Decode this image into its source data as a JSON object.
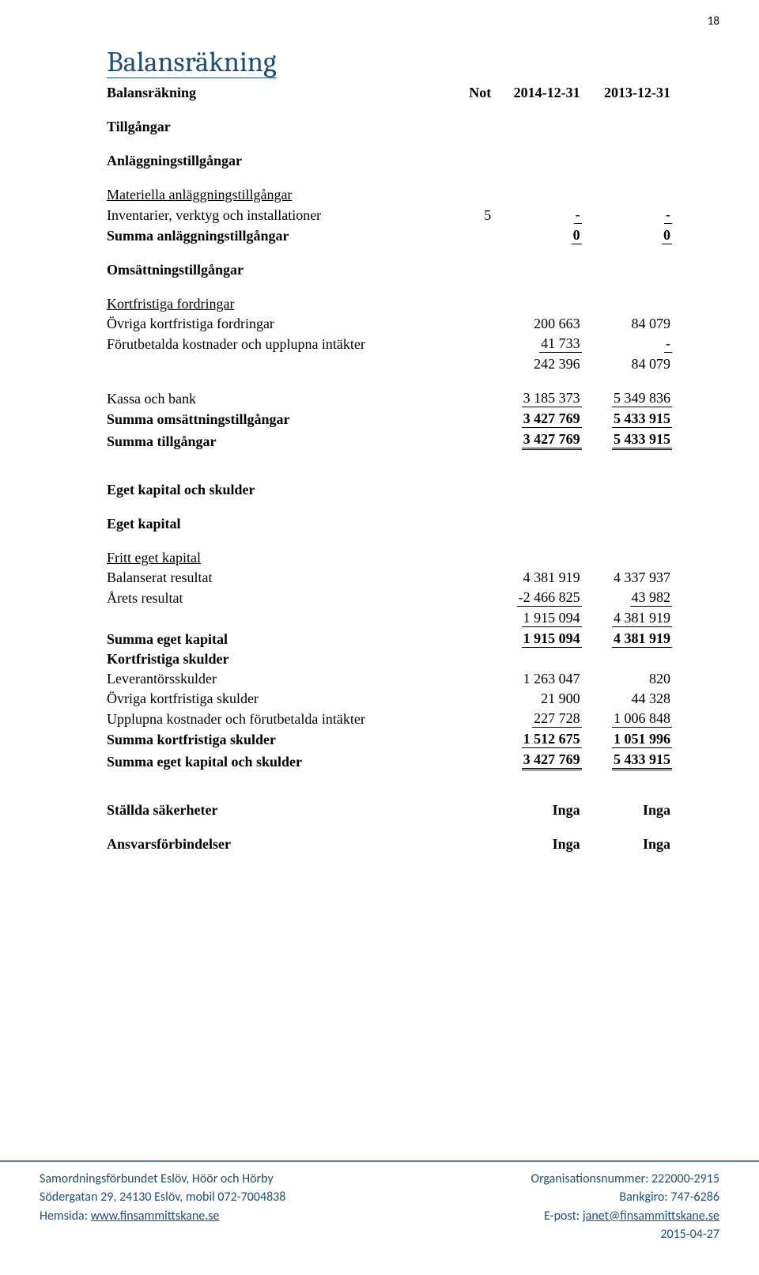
{
  "page_number": "18",
  "title": "Balansräkning",
  "header": {
    "label": "Balansräkning",
    "note": "Not",
    "col_a": "2014-12-31",
    "col_b": "2013-12-31"
  },
  "sections": {
    "tillgangar": "Tillgångar",
    "anlaggnings": "Anläggningstillgångar",
    "materiella": "Materiella anläggningstillgångar",
    "inventarier": {
      "label": "Inventarier, verktyg och installationer",
      "note": "5",
      "a": "-",
      "b": "-"
    },
    "summa_anl": {
      "label": "Summa anläggningstillgångar",
      "a": "0",
      "b": "0"
    },
    "omsattnings": "Omsättningstillgångar",
    "kortfordr_head": "Kortfristiga fordringar",
    "ovriga_fordr": {
      "label": "Övriga kortfristiga fordringar",
      "a": "200 663",
      "b": "84 079"
    },
    "forutbetalda": {
      "label": "Förutbetalda kostnader och upplupna intäkter",
      "a": "41 733",
      "b": "-"
    },
    "sub_fordr": {
      "a": "242 396",
      "b": "84 079"
    },
    "kassa": {
      "label": "Kassa och bank",
      "a": "3 185 373",
      "b": "5 349 836"
    },
    "summa_oms": {
      "label": "Summa omsättningstillgångar",
      "a": "3 427 769",
      "b": "5 433 915"
    },
    "summa_tillg": {
      "label": "Summa tillgångar",
      "a": "3 427 769",
      "b": "5 433 915"
    },
    "ek_skulder": "Eget kapital och skulder",
    "eget_kapital": "Eget kapital",
    "fritt_ek": "Fritt eget kapital",
    "bal_res": {
      "label": "Balanserat resultat",
      "a": "4 381 919",
      "b": "4 337 937"
    },
    "arets_res": {
      "label": "Årets resultat",
      "a": "-2 466 825",
      "b": "43 982"
    },
    "sub_ek": {
      "a": "1 915 094",
      "b": "4 381 919"
    },
    "summa_ek": {
      "label": "Summa eget kapital",
      "a": "1 915 094",
      "b": "4 381 919"
    },
    "kortskuld_head": "Kortfristiga skulder",
    "lev": {
      "label": "Leverantörsskulder",
      "a": "1 263 047",
      "b": "820"
    },
    "ovr_skuld": {
      "label": "Övriga kortfristiga skulder",
      "a": "21 900",
      "b": "44 328"
    },
    "uppl": {
      "label": "Upplupna kostnader och förutbetalda intäkter",
      "a": "227 728",
      "b": "1 006 848"
    },
    "summa_kort": {
      "label": "Summa kortfristiga skulder",
      "a": "1 512 675",
      "b": "1 051 996"
    },
    "summa_eksk": {
      "label": "Summa eget kapital och skulder",
      "a": "3 427 769",
      "b": "5 433 915"
    },
    "stallda": {
      "label": "Ställda säkerheter",
      "a": "Inga",
      "b": "Inga"
    },
    "ansvar": {
      "label": "Ansvarsförbindelser",
      "a": "Inga",
      "b": "Inga"
    }
  },
  "footer": {
    "left": {
      "l1": "Samordningsförbundet Eslöv, Höör och Hörby",
      "l2": "Södergatan 29, 24130 Eslöv, mobil 072-7004838",
      "l3_pre": "Hemsida: ",
      "l3_link": "www.finsammittskane.se"
    },
    "right": {
      "r1": "Organisationsnummer: 222000-2915",
      "r2": "Bankgiro: 747-6286",
      "r3_pre": "E-post: ",
      "r3_link": "janet@finsammittskane.se",
      "r4": "2015-04-27"
    }
  }
}
